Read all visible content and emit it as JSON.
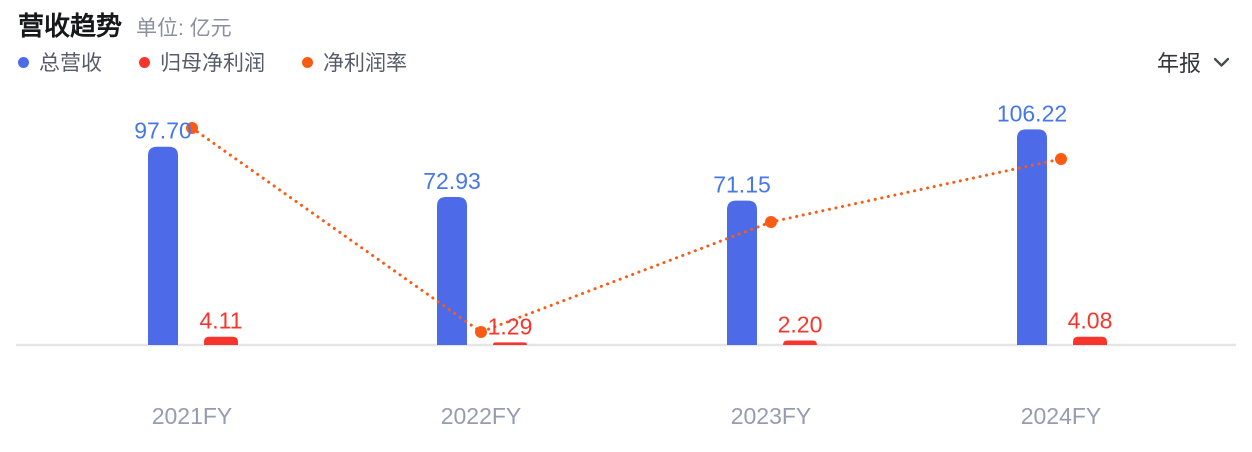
{
  "header": {
    "title": "营收趋势",
    "unit": "单位: 亿元"
  },
  "legend": {
    "items": [
      {
        "label": "总营收",
        "color": "#4D6BE8"
      },
      {
        "label": "归母净利润",
        "color": "#F8352C"
      },
      {
        "label": "净利润率",
        "color": "#FA5A14"
      }
    ]
  },
  "period_selector": {
    "value": "年报",
    "icon": "chevron-down"
  },
  "chart_data": {
    "type": "bar",
    "title": "营收趋势",
    "unit": "亿元",
    "categories": [
      "2021FY",
      "2022FY",
      "2023FY",
      "2024FY"
    ],
    "series": [
      {
        "name": "总营收",
        "type": "bar",
        "color": "#4D6BE8",
        "values": [
          97.7,
          72.93,
          71.15,
          106.22
        ],
        "labels": [
          "97.70",
          "72.93",
          "71.15",
          "106.22"
        ],
        "label_color": "#4677E8"
      },
      {
        "name": "归母净利润",
        "type": "bar",
        "color": "#F8352C",
        "values": [
          4.11,
          1.29,
          2.2,
          4.08
        ],
        "labels": [
          "4.11",
          "1.29",
          "2.20",
          "4.08"
        ],
        "label_color": "#F8352C"
      },
      {
        "name": "净利润率",
        "type": "line",
        "line_style": "dotted",
        "unit": "%",
        "color": "#FA5A14",
        "values": [
          4.21,
          1.77,
          3.09,
          3.84
        ],
        "points_shown": true,
        "labels_shown": false
      }
    ],
    "x_axis": {
      "labels": [
        "2021FY",
        "2022FY",
        "2023FY",
        "2024FY"
      ],
      "label_color": "#959CB0",
      "baseline_color": "#E5E5E7"
    },
    "y_axis": {
      "shown": false
    },
    "grid": false,
    "legend_position": "top-left"
  }
}
